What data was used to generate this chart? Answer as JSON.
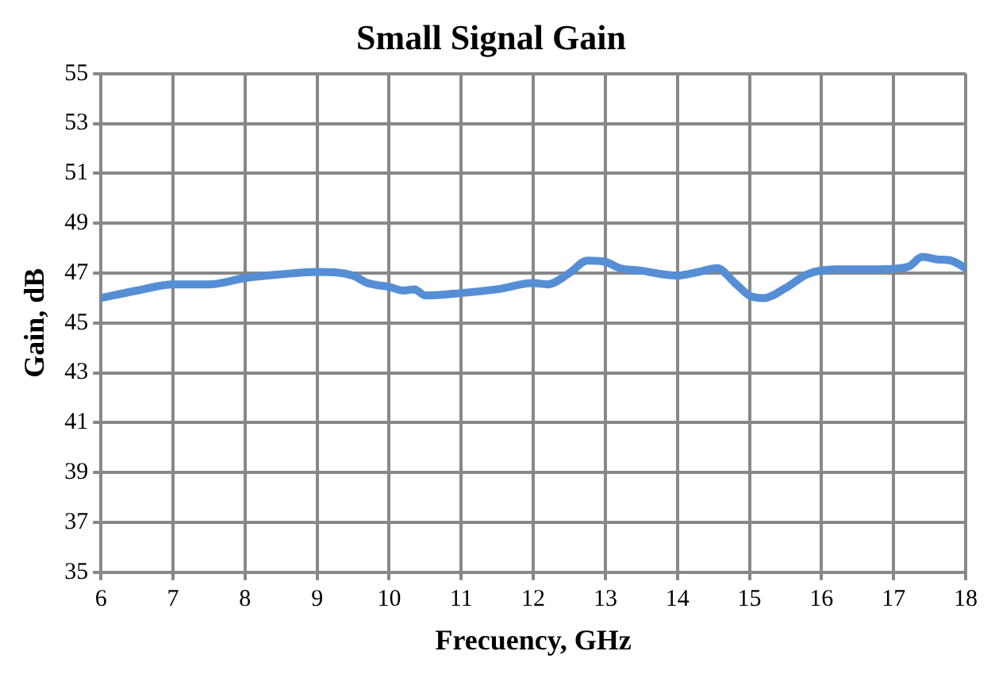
{
  "chart_data": {
    "type": "line",
    "title": "Small Signal Gain",
    "xlabel": "Frecuency, GHz",
    "ylabel": "Gain, dB",
    "x": [
      6,
      6.5,
      7,
      7.5,
      8,
      8.5,
      9,
      9.5,
      9.7,
      10,
      10.2,
      10.35,
      10.5,
      11,
      11.5,
      12,
      12.2,
      12.5,
      12.75,
      13,
      13.2,
      13.5,
      13.8,
      14,
      14.3,
      14.55,
      14.8,
      15,
      15.2,
      15.5,
      15.8,
      16.2,
      16.8,
      17.2,
      17.4,
      17.6,
      17.8,
      18
    ],
    "series": [
      {
        "color": "#558ed5",
        "values": [
          46.0,
          46.3,
          46.55,
          46.55,
          46.8,
          46.95,
          47.05,
          46.9,
          46.6,
          46.45,
          46.3,
          46.35,
          46.1,
          46.2,
          46.35,
          46.6,
          46.55,
          47.0,
          47.5,
          47.45,
          47.2,
          47.1,
          46.95,
          46.9,
          47.05,
          47.2,
          46.6,
          46.1,
          46.0,
          46.4,
          46.95,
          47.15,
          47.15,
          47.25,
          47.65,
          47.55,
          47.5,
          47.2
        ]
      }
    ],
    "xlim": [
      6,
      18
    ],
    "xticks": [
      6,
      7,
      8,
      9,
      10,
      11,
      12,
      13,
      14,
      15,
      16,
      17,
      18
    ],
    "ylim": [
      35,
      55
    ],
    "yticks": [
      35,
      37,
      39,
      41,
      43,
      45,
      47,
      49,
      51,
      53,
      55
    ],
    "grid": true,
    "legend": false,
    "marker": "none",
    "line_style": "solid"
  }
}
